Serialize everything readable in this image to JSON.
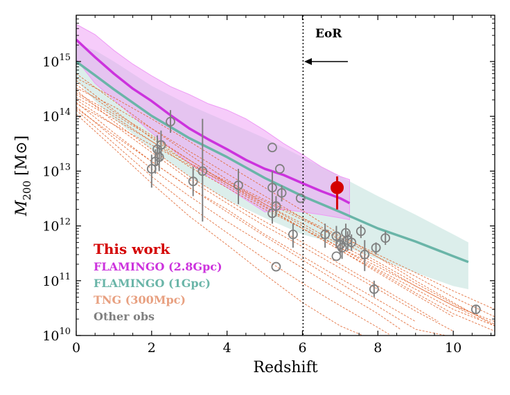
{
  "chart_data": {
    "type": "scatter",
    "xlabel": "Redshift",
    "ylabel": "M200 [M⊙]",
    "ylabel_main": "M",
    "ylabel_sub": "200",
    "ylabel_unit": " [M⊙]",
    "xlim": [
      0,
      11.1
    ],
    "ylim": [
      10000000000.0,
      7000000000000000.0
    ],
    "yscale": "log",
    "x_ticks": [
      "0",
      "2",
      "4",
      "6",
      "8",
      "10"
    ],
    "x_tick_values": [
      0,
      2,
      4,
      6,
      8,
      10
    ],
    "y_tick_exponents": [
      10,
      11,
      12,
      13,
      14,
      15
    ],
    "y_tick_base": "10",
    "grid": false,
    "legend_position": "bottom-left",
    "eor": {
      "label": "EoR",
      "z": 6.0
    },
    "colors": {
      "this_work": "#d40000",
      "flamingo_28": "#cc33dd",
      "flamingo_28_band": "#ee99f5",
      "flamingo_1": "#6ab5a8",
      "flamingo_1_band": "#bfe0da",
      "tng": "#e0622a",
      "other_obs": "#808080"
    },
    "legend": [
      {
        "label": "This work",
        "color": "#d40000"
      },
      {
        "label": "FLAMINGO (2.8Gpc)",
        "color": "#cc33dd"
      },
      {
        "label": "FLAMINGO (1Gpc)",
        "color": "#6ab5a8"
      },
      {
        "label": "TNG (300Mpc)",
        "color": "#e8a080"
      },
      {
        "label": "Other obs",
        "color": "#808080"
      }
    ],
    "series": [
      {
        "name": "FLAMINGO (2.8Gpc)",
        "x": [
          0,
          0.5,
          1,
          1.5,
          2,
          2.5,
          3,
          3.5,
          4,
          4.5,
          5,
          5.5,
          6,
          6.5,
          7,
          7.25
        ],
        "y": [
          2500000000000000.0,
          1200000000000000.0,
          600000000000000.0,
          320000000000000.0,
          190000000000000.0,
          105000000000000.0,
          60000000000000.0,
          38000000000000.0,
          25000000000000.0,
          16000000000000.0,
          11000000000000.0,
          8500000000000.0,
          6000000000000.0,
          4300000000000.0,
          3200000000000.0,
          2600000000000.0
        ],
        "band_low": [
          1100000000000000.0,
          400000000000000.0,
          200000000000000.0,
          100000000000000.0,
          50000000000000.0,
          26000000000000.0,
          14000000000000.0,
          8000000000000.0,
          5000000000000.0,
          3000000000000.0,
          1800000000000.0,
          2000000000000.0,
          1800000000000.0,
          1600000000000.0,
          1400000000000.0,
          1300000000000.0
        ],
        "band_high": [
          4800000000000000.0,
          3100000000000000.0,
          1600000000000000.0,
          900000000000000.0,
          550000000000000.0,
          350000000000000.0,
          250000000000000.0,
          170000000000000.0,
          130000000000000.0,
          90000000000000.0,
          55000000000000.0,
          32000000000000.0,
          20000000000000.0,
          12000000000000.0,
          8000000000000.0,
          7000000000000.0
        ]
      },
      {
        "name": "FLAMINGO (1Gpc)",
        "x": [
          0,
          0.5,
          1,
          2,
          3,
          4,
          5,
          6,
          7,
          8,
          9,
          10,
          10.4
        ],
        "y": [
          1000000000000000.0,
          560000000000000.0,
          310000000000000.0,
          102000000000000.0,
          40000000000000.0,
          18000000000000.0,
          7500000000000.0,
          3500000000000.0,
          1800000000000.0,
          900000000000.0,
          520000000000.0,
          280000000000.0,
          220000000000.0
        ],
        "band_low": [
          450000000000000.0,
          190000000000000.0,
          90000000000000.0,
          25000000000000.0,
          8000000000000.0,
          3000000000000.0,
          1400000000000.0,
          700000000000.0,
          450000000000.0,
          250000000000.0,
          140000000000.0,
          80000000000.0,
          70000000000.0
        ],
        "band_high": [
          2100000000000000.0,
          1600000000000000.0,
          1000000000000000.0,
          360000000000000.0,
          160000000000000.0,
          80000000000000.0,
          40000000000000.0,
          18000000000000.0,
          8000000000000.0,
          3500000000000.0,
          1600000000000.0,
          700000000000.0,
          500000000000.0
        ]
      }
    ],
    "this_work": [
      {
        "z": 6.92,
        "m": 5000000000000.0,
        "lo": 2000000000000.0,
        "hi": 8000000000000.0
      }
    ],
    "other_obs": [
      {
        "z": 2.0,
        "m": 11000000000000.0,
        "lo": 5000000000000.0,
        "hi": 20000000000000.0
      },
      {
        "z": 2.1,
        "m": 15000000000000.0,
        "lo": 9000000000000.0,
        "hi": 25000000000000.0
      },
      {
        "z": 2.15,
        "m": 25000000000000.0,
        "lo": 13000000000000.0,
        "hi": 45000000000000.0
      },
      {
        "z": 2.2,
        "m": 18000000000000.0,
        "lo": 10000000000000.0,
        "hi": 30000000000000.0
      },
      {
        "z": 2.25,
        "m": 30000000000000.0,
        "lo": 15000000000000.0,
        "hi": 55000000000000.0
      },
      {
        "z": 2.5,
        "m": 80000000000000.0,
        "lo": 50000000000000.0,
        "hi": 130000000000000.0
      },
      {
        "z": 3.1,
        "m": 6500000000000.0,
        "lo": 3500000000000.0,
        "hi": 12000000000000.0
      },
      {
        "z": 3.35,
        "m": 10000000000000.0,
        "lo": 1200000000000.0,
        "hi": 90000000000000.0
      },
      {
        "z": 4.3,
        "m": 5500000000000.0,
        "lo": 2500000000000.0,
        "hi": 11000000000000.0
      },
      {
        "z": 5.2,
        "m": 27000000000000.0,
        "lo": 27000000000000.0,
        "hi": 27000000000000.0
      },
      {
        "z": 5.2,
        "m": 5000000000000.0,
        "lo": 2500000000000.0,
        "hi": 10000000000000.0
      },
      {
        "z": 5.2,
        "m": 1700000000000.0,
        "lo": 1100000000000.0,
        "hi": 2600000000000.0
      },
      {
        "z": 5.3,
        "m": 2300000000000.0,
        "lo": 1500000000000.0,
        "hi": 3500000000000.0
      },
      {
        "z": 5.3,
        "m": 180000000000.0,
        "lo": 180000000000.0,
        "hi": 180000000000.0
      },
      {
        "z": 5.4,
        "m": 11000000000000.0,
        "lo": 11000000000000.0,
        "hi": 11000000000000.0
      },
      {
        "z": 5.45,
        "m": 4000000000000.0,
        "lo": 2800000000000.0,
        "hi": 5500000000000.0
      },
      {
        "z": 5.75,
        "m": 700000000000.0,
        "lo": 400000000000.0,
        "hi": 1100000000000.0
      },
      {
        "z": 5.95,
        "m": 3200000000000.0,
        "lo": 3200000000000.0,
        "hi": 3200000000000.0
      },
      {
        "z": 6.6,
        "m": 700000000000.0,
        "lo": 400000000000.0,
        "hi": 1100000000000.0
      },
      {
        "z": 6.9,
        "m": 280000000000.0,
        "lo": 280000000000.0,
        "hi": 280000000000.0
      },
      {
        "z": 6.9,
        "m": 650000000000.0,
        "lo": 400000000000.0,
        "hi": 1000000000000.0
      },
      {
        "z": 7.0,
        "m": 450000000000.0,
        "lo": 300000000000.0,
        "hi": 650000000000.0
      },
      {
        "z": 7.05,
        "m": 400000000000.0,
        "lo": 250000000000.0,
        "hi": 600000000000.0
      },
      {
        "z": 7.15,
        "m": 750000000000.0,
        "lo": 500000000000.0,
        "hi": 1100000000000.0
      },
      {
        "z": 7.2,
        "m": 550000000000.0,
        "lo": 350000000000.0,
        "hi": 800000000000.0
      },
      {
        "z": 7.3,
        "m": 500000000000.0,
        "lo": 350000000000.0,
        "hi": 700000000000.0
      },
      {
        "z": 7.55,
        "m": 800000000000.0,
        "lo": 600000000000.0,
        "hi": 1050000000000.0
      },
      {
        "z": 7.65,
        "m": 300000000000.0,
        "lo": 150000000000.0,
        "hi": 550000000000.0
      },
      {
        "z": 7.9,
        "m": 70000000000.0,
        "lo": 50000000000.0,
        "hi": 100000000000.0
      },
      {
        "z": 7.95,
        "m": 400000000000.0,
        "lo": 300000000000.0,
        "hi": 500000000000.0
      },
      {
        "z": 8.2,
        "m": 600000000000.0,
        "lo": 450000000000.0,
        "hi": 800000000000.0
      },
      {
        "z": 10.6,
        "m": 30000000000.0,
        "lo": 25000000000.0,
        "hi": 35000000000.0
      }
    ],
    "tng_tracks": [
      {
        "z": [
          0,
          1,
          2,
          3,
          4,
          5,
          6,
          7,
          8,
          9,
          10,
          11.1
        ],
        "m": [
          600000000000000.0,
          190000000000000.0,
          60000000000000.0,
          20000000000000.0,
          7000000000000.0,
          2500000000000.0,
          1000000000000.0,
          400000000000.0,
          160000000000.0,
          70000000000.0,
          30000000000.0,
          15000000000.0
        ]
      },
      {
        "z": [
          0,
          1,
          2,
          3,
          4,
          5,
          6,
          7,
          8,
          9,
          10,
          11.1
        ],
        "m": [
          450000000000000.0,
          130000000000000.0,
          40000000000000.0,
          14000000000000.0,
          5500000000000.0,
          2200000000000.0,
          900000000000.0,
          360000000000.0,
          150000000000.0,
          60000000000.0,
          25000000000.0,
          12000000000.0
        ]
      },
      {
        "z": [
          0,
          1,
          2,
          3,
          4,
          5,
          6,
          7,
          8,
          9,
          10,
          10.7
        ],
        "m": [
          380000000000000.0,
          120000000000000.0,
          45000000000000.0,
          16000000000000.0,
          6000000000000.0,
          2500000000000.0,
          1100000000000.0,
          450000000000.0,
          200000000000.0,
          80000000000.0,
          35000000000.0,
          20000000000.0
        ]
      },
      {
        "z": [
          0,
          1,
          2,
          3,
          4,
          5,
          6,
          7,
          8,
          9,
          9.6
        ],
        "m": [
          300000000000000.0,
          80000000000000.0,
          25000000000000.0,
          8000000000000.0,
          3000000000000.0,
          1200000000000.0,
          500000000000.0,
          200000000000.0,
          80000000000.0,
          32000000000.0,
          18000000000.0
        ]
      },
      {
        "z": [
          0,
          1,
          2,
          3,
          4,
          5,
          6,
          7,
          8,
          9,
          10,
          11.1
        ],
        "m": [
          250000000000000.0,
          100000000000000.0,
          35000000000000.0,
          12000000000000.0,
          5000000000000.0,
          2000000000000.0,
          900000000000.0,
          400000000000.0,
          180000000000.0,
          80000000000.0,
          35000000000.0,
          18000000000.0
        ]
      },
      {
        "z": [
          0,
          1,
          2,
          3,
          4,
          5,
          6,
          7,
          8,
          9,
          10
        ],
        "m": [
          200000000000000.0,
          70000000000000.0,
          22000000000000.0,
          7000000000000.0,
          2600000000000.0,
          1000000000000.0,
          420000000000.0,
          170000000000.0,
          70000000000.0,
          28000000000.0,
          12000000000.0
        ]
      },
      {
        "z": [
          0,
          1,
          2,
          3,
          4,
          5,
          6,
          7,
          8,
          9
        ],
        "m": [
          180000000000000.0,
          50000000000000.0,
          15000000000000.0,
          5000000000000.0,
          2000000000000.0,
          700000000000.0,
          280000000000.0,
          110000000000.0,
          45000000000.0,
          18000000000.0
        ]
      },
      {
        "z": [
          0,
          1,
          2,
          3,
          4,
          5,
          6,
          7,
          8,
          8.6
        ],
        "m": [
          150000000000000.0,
          40000000000000.0,
          11000000000000.0,
          3500000000000.0,
          1200000000000.0,
          450000000000.0,
          170000000000.0,
          65000000000.0,
          25000000000.0,
          13000000000.0
        ]
      },
      {
        "z": [
          0,
          1,
          2,
          3,
          4,
          5,
          6,
          7,
          8,
          9,
          10,
          11.1
        ],
        "m": [
          220000000000000.0,
          90000000000000.0,
          35000000000000.0,
          14000000000000.0,
          6500000000000.0,
          3000000000000.0,
          1400000000000.0,
          650000000000.0,
          300000000000.0,
          140000000000.0,
          65000000000.0,
          30000000000.0
        ]
      },
      {
        "z": [
          0,
          1,
          2,
          3,
          4,
          5,
          6,
          7,
          8,
          8.3
        ],
        "m": [
          130000000000000.0,
          32000000000000.0,
          8000000000000.0,
          2300000000000.0,
          750000000000.0,
          250000000000.0,
          90000000000.0,
          35000000000.0,
          14000000000.0,
          10500000000.0
        ]
      },
      {
        "z": [
          0,
          1,
          2,
          3,
          4,
          5,
          6,
          7,
          8,
          9,
          10,
          11.1
        ],
        "m": [
          330000000000000.0,
          150000000000000.0,
          60000000000000.0,
          23000000000000.0,
          9000000000000.0,
          3500000000000.0,
          1400000000000.0,
          550000000000.0,
          220000000000.0,
          90000000000.0,
          38000000000.0,
          16000000000.0
        ]
      },
      {
        "z": [
          0,
          1,
          2,
          3,
          4,
          5,
          6,
          7,
          8,
          9,
          10
        ],
        "m": [
          270000000000000.0,
          110000000000000.0,
          42000000000000.0,
          16000000000000.0,
          6000000000000.0,
          2300000000000.0,
          900000000000.0,
          360000000000.0,
          140000000000.0,
          55000000000.0,
          22000000000.0
        ]
      },
      {
        "z": [
          0,
          1,
          2,
          3,
          4,
          5,
          6,
          7,
          7.6
        ],
        "m": [
          110000000000000.0,
          26000000000000.0,
          6000000000000.0,
          1500000000000.0,
          450000000000.0,
          130000000000.0,
          40000000000.0,
          15000000000.0,
          10000000000.0
        ]
      },
      {
        "z": [
          0,
          1,
          2,
          3,
          4,
          5,
          6,
          7,
          8,
          9,
          10,
          11.1
        ],
        "m": [
          170000000000000.0,
          70000000000000.0,
          30000000000000.0,
          13000000000000.0,
          6000000000000.0,
          2800000000000.0,
          1300000000000.0,
          600000000000.0,
          270000000000.0,
          120000000000.0,
          50000000000.0,
          22000000000.0
        ]
      },
      {
        "z": [
          0,
          1,
          2,
          3,
          4,
          5,
          6,
          7,
          8,
          9,
          9.8
        ],
        "m": [
          140000000000000.0,
          45000000000000.0,
          15000000000000.0,
          5000000000000.0,
          1800000000000.0,
          650000000000.0,
          240000000000.0,
          90000000000.0,
          34000000000.0,
          13000000000.0,
          10000000000.0
        ]
      },
      {
        "z": [
          0,
          1,
          2,
          3,
          4,
          5,
          6,
          7,
          8,
          9,
          10,
          11.1
        ],
        "m": [
          500000000000000.0,
          220000000000000.0,
          90000000000000.0,
          35000000000000.0,
          13000000000000.0,
          5000000000000.0,
          1900000000000.0,
          700000000000.0,
          270000000000.0,
          100000000000.0,
          40000000000.0,
          15000000000.0
        ]
      }
    ]
  }
}
